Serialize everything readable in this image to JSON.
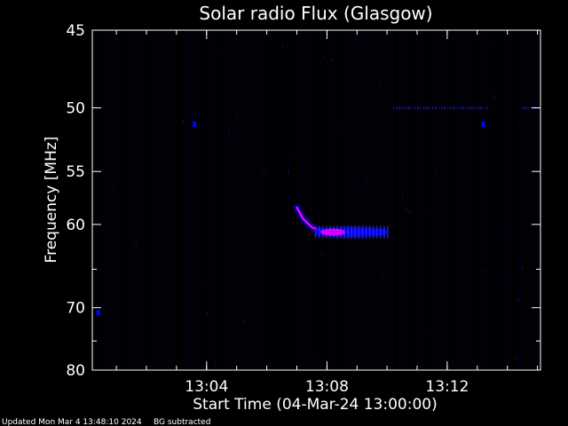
{
  "chart_data": {
    "type": "heatmap",
    "title": "Solar radio Flux (Glasgow)",
    "xlabel": "Start Time (04-Mar-24 13:00:00)",
    "ylabel": "Frequency [MHz]",
    "x_unit": "minutes after 13:00:00",
    "xlim": [
      0.2,
      15.1
    ],
    "ylim": [
      45,
      80
    ],
    "y_scale": "reciprocal",
    "y_direction": "increasing downward",
    "x_ticks": [
      {
        "value": 4,
        "label": "13:04"
      },
      {
        "value": 8,
        "label": "13:08"
      },
      {
        "value": 12,
        "label": "13:12"
      }
    ],
    "x_minor_step": 1,
    "y_ticks": [
      {
        "value": 45,
        "label": "45"
      },
      {
        "value": 50,
        "label": "50"
      },
      {
        "value": 55,
        "label": "55"
      },
      {
        "value": 60,
        "label": "60"
      },
      {
        "value": 70,
        "label": "70"
      },
      {
        "value": 80,
        "label": "80"
      }
    ],
    "y_minor_ticks": [
      65,
      75
    ],
    "background": "#000000",
    "colors": {
      "low": "#0000ff",
      "mid": "#ff00ff",
      "high": "#ff0000"
    },
    "features": [
      {
        "name": "drifting burst",
        "points": [
          [
            7.0,
            58.3
          ],
          [
            7.2,
            59.4
          ],
          [
            7.5,
            60.3
          ],
          [
            7.9,
            60.8
          ],
          [
            8.3,
            60.9
          ]
        ],
        "intensity": "high"
      },
      {
        "name": "emission band",
        "t_start": 7.6,
        "t_end": 10.0,
        "frequency": 60.8,
        "intensity_peak_time": 8.2
      },
      {
        "name": "interference line",
        "t_start": 10.2,
        "t_end": 13.3,
        "frequency": 50.0
      },
      {
        "name": "interference line",
        "t_start": 14.5,
        "t_end": 15.0,
        "frequency": 50.0
      },
      {
        "name": "spot",
        "t": 0.4,
        "frequency": 70.7
      },
      {
        "name": "spot",
        "t": 3.6,
        "frequency": 51.2
      },
      {
        "name": "spot",
        "t": 13.2,
        "frequency": 51.2
      }
    ]
  },
  "footer": {
    "updated": "Updated Mon Mar  4 13:48:10 2024",
    "note": "BG subtracted"
  }
}
